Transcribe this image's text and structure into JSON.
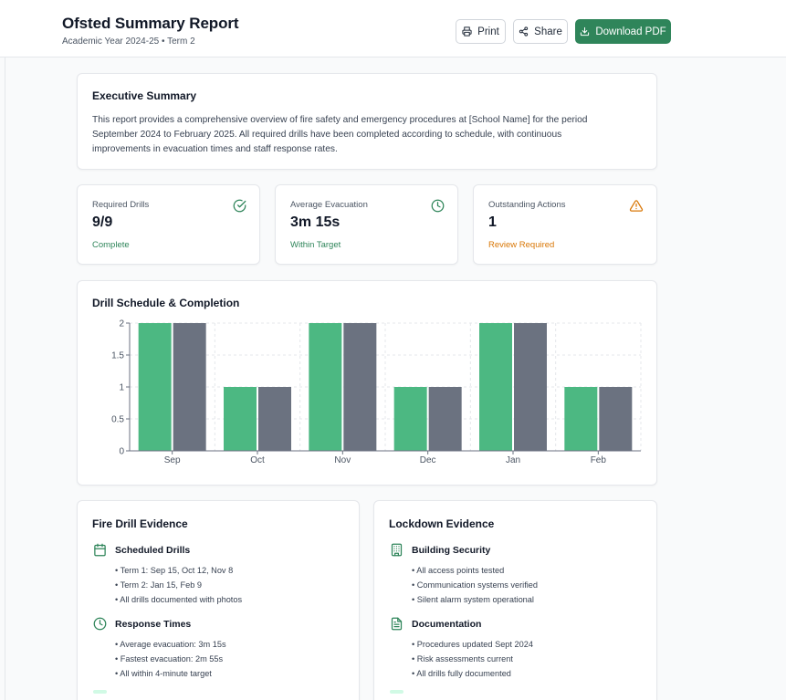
{
  "header": {
    "title": "Ofsted Summary Report",
    "subtitle": "Academic Year 2024-25 • Term 2",
    "print_label": "Print",
    "share_label": "Share",
    "download_label": "Download PDF"
  },
  "colors": {
    "accent": "#2f855a",
    "green_bar": "#4cb882",
    "gray_bar": "#6b7280",
    "warning": "#d97706",
    "success_text": "#2f855a"
  },
  "executive_summary": {
    "title": "Executive Summary",
    "text": "This report provides a comprehensive overview of fire safety and emergency procedures at [School Name] for the period September 2024 to February 2025. All required drills have been completed according to schedule, with continuous improvements in evacuation times and staff response rates."
  },
  "stats": [
    {
      "label": "Required Drills",
      "value": "9/9",
      "note": "Complete",
      "icon": "check-circle-icon"
    },
    {
      "label": "Average Evacuation",
      "value": "3m 15s",
      "note": "Within Target",
      "icon": "clock-icon"
    },
    {
      "label": "Outstanding Actions",
      "value": "1",
      "note": "Review Required",
      "icon": "warning-triangle-icon"
    }
  ],
  "chart_title": "Drill Schedule & Completion",
  "chart_data": {
    "type": "bar",
    "categories": [
      "Sep",
      "Oct",
      "Nov",
      "Dec",
      "Jan",
      "Feb"
    ],
    "series": [
      {
        "values": [
          2,
          1,
          2,
          1,
          2,
          1
        ],
        "color": "#4cb882"
      },
      {
        "values": [
          2,
          1,
          2,
          1,
          2,
          1
        ],
        "color": "#6b7280"
      }
    ],
    "yticks": [
      "0",
      "0.5",
      "1",
      "1.5",
      "2"
    ],
    "ylim": [
      0,
      2
    ],
    "grid": true,
    "legend": "none"
  },
  "fire_evidence": {
    "title": "Fire Drill Evidence",
    "sections": [
      {
        "title": "Scheduled Drills",
        "icon": "calendar-icon",
        "items": [
          "• Term 1: Sep 15, Oct 12, Nov 8",
          "• Term 2: Jan 15, Feb 9",
          "• All drills documented with photos"
        ]
      },
      {
        "title": "Response Times",
        "icon": "clock-icon",
        "items": [
          "• Average evacuation: 3m 15s",
          "• Fastest evacuation: 2m 55s",
          "• All within 4-minute target"
        ]
      }
    ]
  },
  "lockdown_evidence": {
    "title": "Lockdown Evidence",
    "sections": [
      {
        "title": "Building Security",
        "icon": "building-icon",
        "items": [
          "• All access points tested",
          "• Communication systems verified",
          "• Silent alarm system operational"
        ]
      },
      {
        "title": "Documentation",
        "icon": "document-icon",
        "items": [
          "• Procedures updated Sept 2024",
          "• Risk assessments current",
          "• All drills fully documented"
        ]
      }
    ]
  }
}
